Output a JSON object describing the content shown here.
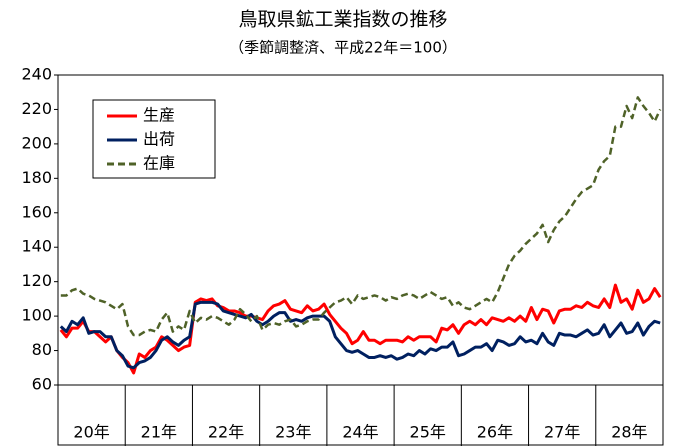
{
  "chart_data": {
    "type": "line",
    "title": "鳥取県鉱工業指数の推移",
    "subtitle": "（季節調整済、平成22年＝100）",
    "categories": [
      null,
      null,
      null,
      null,
      null,
      null,
      "20年",
      null,
      null,
      null,
      null,
      null,
      null,
      null,
      null,
      null,
      null,
      null,
      "21年",
      null,
      null,
      null,
      null,
      null,
      null,
      null,
      null,
      null,
      null,
      null,
      "22年",
      null,
      null,
      null,
      null,
      null,
      null,
      null,
      null,
      null,
      null,
      null,
      "23年",
      null,
      null,
      null,
      null,
      null,
      null,
      null,
      null,
      null,
      null,
      null,
      "24年",
      null,
      null,
      null,
      null,
      null,
      null,
      null,
      null,
      null,
      null,
      null,
      "25年",
      null,
      null,
      null,
      null,
      null,
      null,
      null,
      null,
      null,
      null,
      null,
      "26年",
      null,
      null,
      null,
      null,
      null,
      null,
      null,
      null,
      null,
      null,
      null,
      "27年",
      null,
      null,
      null,
      null,
      null,
      null,
      null,
      null,
      null,
      null,
      null,
      "28年",
      null,
      null,
      null,
      null,
      null
    ],
    "series": [
      {
        "name": "生産",
        "color": "#ff0000",
        "style": "solid",
        "values": [
          92,
          88,
          93,
          93,
          97,
          91,
          91,
          88,
          85,
          88,
          80,
          76,
          73,
          67,
          78,
          76,
          80,
          82,
          88,
          86,
          83,
          80,
          82,
          83,
          108,
          110,
          109,
          110,
          106,
          105,
          103,
          103,
          102,
          100,
          100,
          99,
          98,
          103,
          106,
          107,
          109,
          104,
          103,
          102,
          106,
          103,
          104,
          107,
          101,
          97,
          93,
          90,
          84,
          86,
          91,
          86,
          86,
          84,
          86,
          86,
          86,
          85,
          88,
          86,
          88,
          88,
          88,
          85,
          93,
          92,
          95,
          90,
          95,
          97,
          95,
          98,
          95,
          99,
          98,
          97,
          99,
          97,
          100,
          97,
          105,
          98,
          104,
          103,
          96,
          103,
          104,
          104,
          106,
          105,
          108,
          106,
          105,
          110,
          105,
          118,
          108,
          110,
          104,
          115,
          108,
          110,
          116,
          111
        ]
      },
      {
        "name": "出荷",
        "color": "#002060",
        "style": "solid",
        "values": [
          94,
          91,
          97,
          95,
          99,
          90,
          91,
          91,
          88,
          88,
          80,
          77,
          71,
          70,
          73,
          74,
          76,
          80,
          86,
          88,
          85,
          83,
          86,
          88,
          107,
          108,
          108,
          108,
          107,
          103,
          102,
          101,
          100,
          99,
          101,
          97,
          95,
          97,
          100,
          102,
          102,
          97,
          98,
          97,
          99,
          100,
          100,
          100,
          97,
          88,
          84,
          80,
          79,
          80,
          78,
          76,
          76,
          77,
          76,
          77,
          75,
          76,
          78,
          77,
          80,
          78,
          81,
          80,
          82,
          82,
          85,
          77,
          78,
          80,
          82,
          82,
          84,
          80,
          86,
          85,
          83,
          84,
          88,
          85,
          86,
          84,
          90,
          85,
          83,
          90,
          89,
          89,
          88,
          90,
          92,
          89,
          90,
          95,
          88,
          92,
          96,
          90,
          91,
          96,
          89,
          94,
          97,
          96
        ]
      },
      {
        "name": "在庫",
        "color": "#4f6228",
        "style": "dashed",
        "values": [
          112,
          112,
          115,
          116,
          113,
          112,
          110,
          109,
          108,
          106,
          104,
          107,
          94,
          89,
          89,
          91,
          92,
          91,
          98,
          102,
          91,
          94,
          92,
          103,
          96,
          99,
          98,
          100,
          99,
          97,
          95,
          98,
          104,
          101,
          97,
          100,
          92,
          95,
          96,
          95,
          97,
          98,
          94,
          95,
          97,
          98,
          98,
          102,
          105,
          108,
          109,
          111,
          107,
          112,
          110,
          111,
          112,
          111,
          109,
          111,
          110,
          112,
          113,
          112,
          110,
          112,
          114,
          112,
          110,
          111,
          106,
          108,
          105,
          104,
          106,
          108,
          110,
          108,
          114,
          122,
          130,
          135,
          138,
          142,
          145,
          148,
          153,
          143,
          150,
          155,
          158,
          163,
          168,
          172,
          174,
          176,
          185,
          190,
          193,
          210,
          210,
          222,
          215,
          227,
          222,
          218,
          213,
          220
        ]
      }
    ],
    "ylim": [
      60,
      240
    ],
    "yticks": [
      60,
      80,
      100,
      120,
      140,
      160,
      180,
      200,
      220,
      240
    ],
    "grid": false,
    "legend": "upper-left"
  }
}
